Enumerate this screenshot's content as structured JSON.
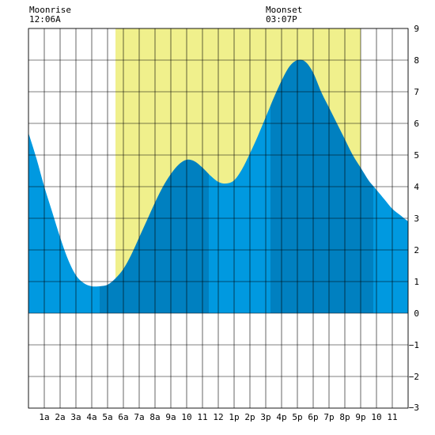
{
  "header": {
    "moonrise_label": "Moonrise",
    "moonrise_time": "12:06A",
    "moonset_label": "Moonset",
    "moonset_time": "03:07P"
  },
  "chart_data": {
    "type": "area",
    "title": "",
    "xlabel": "",
    "ylabel": "",
    "xlim": [
      0,
      24
    ],
    "ylim": [
      -3,
      9
    ],
    "grid": true,
    "x_tick_labels": [
      "1a",
      "2a",
      "3a",
      "4a",
      "5a",
      "6a",
      "7a",
      "8a",
      "9a",
      "10",
      "11",
      "12",
      "1p",
      "2p",
      "3p",
      "4p",
      "5p",
      "6p",
      "7p",
      "8p",
      "9p",
      "10",
      "11"
    ],
    "y_ticks": [
      -3,
      -2,
      -1,
      0,
      1,
      2,
      3,
      4,
      5,
      6,
      7,
      8,
      9
    ],
    "y_tick_labels": [
      "−3",
      "−2",
      "−1",
      "0",
      "1",
      "2",
      "3",
      "4",
      "5",
      "6",
      "7",
      "8",
      "9"
    ],
    "daylight_band": {
      "start_hour": 5.5,
      "end_hour": 21.0,
      "color": "#f0f08c"
    },
    "tide_series": {
      "name": "",
      "x": [
        0,
        0.5,
        1,
        1.5,
        2,
        2.5,
        3,
        3.5,
        4,
        4.5,
        5,
        5.5,
        6,
        6.5,
        7,
        7.5,
        8,
        8.5,
        9,
        9.5,
        10,
        10.5,
        11,
        11.5,
        12,
        12.5,
        13,
        13.5,
        14,
        14.5,
        15,
        15.5,
        16,
        16.5,
        17,
        17.5,
        18,
        18.5,
        19,
        19.5,
        20,
        20.5,
        21,
        21.5,
        22,
        22.5,
        23,
        23.5,
        24
      ],
      "y": [
        5.7,
        4.9,
        4.0,
        3.2,
        2.4,
        1.7,
        1.2,
        0.95,
        0.85,
        0.85,
        0.9,
        1.1,
        1.4,
        1.85,
        2.4,
        2.95,
        3.5,
        4.0,
        4.4,
        4.7,
        4.85,
        4.8,
        4.6,
        4.35,
        4.15,
        4.1,
        4.2,
        4.55,
        5.05,
        5.6,
        6.2,
        6.8,
        7.35,
        7.8,
        8.0,
        7.95,
        7.6,
        7.0,
        6.5,
        6.0,
        5.5,
        5.0,
        4.6,
        4.2,
        3.9,
        3.6,
        3.3,
        3.1,
        2.9
      ]
    },
    "tide_events_hours": [
      4.5,
      11.4,
      15.3,
      21.8
    ],
    "colors": {
      "tide_light": "#0099e0",
      "tide_dark": "#0080c0",
      "grid": "#000000",
      "background": "#ffffff"
    }
  }
}
